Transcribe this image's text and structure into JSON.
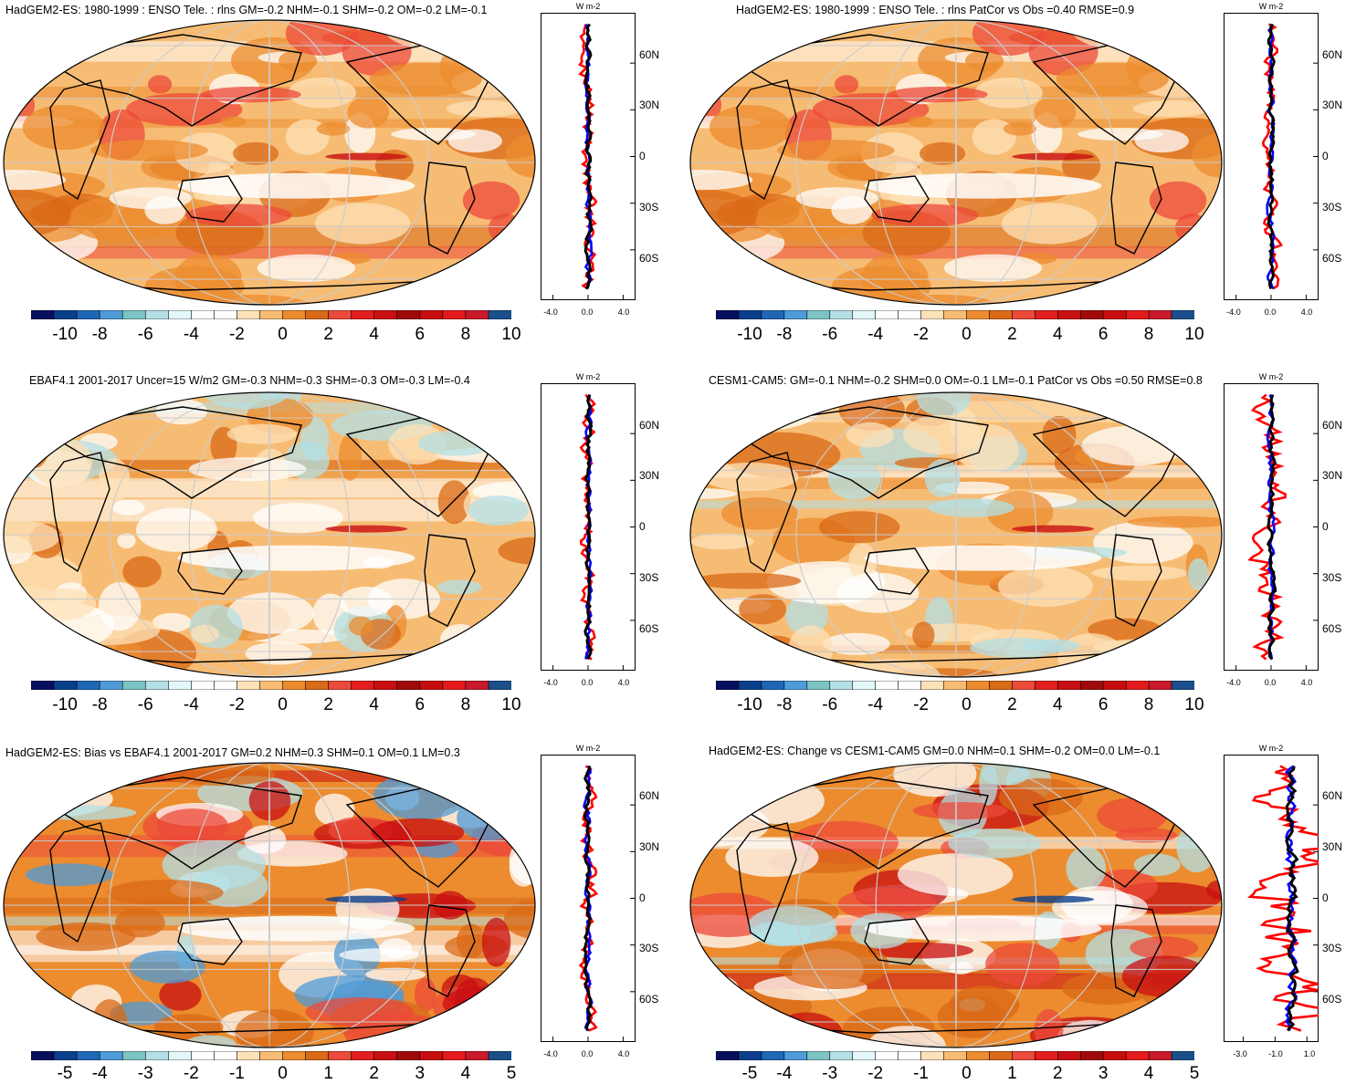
{
  "colorbar_colors": [
    "#08105e",
    "#0a3f8c",
    "#1f67b6",
    "#4e9bd8",
    "#7cc4c3",
    "#b3e0e6",
    "#e3f6f8",
    "#ffffff",
    "#ffffff",
    "#fde1b8",
    "#f7bc74",
    "#ec8c2f",
    "#d96a17",
    "#ec4a3a",
    "#e21e1e",
    "#c80f12",
    "#a00a0a",
    "#c70d0d",
    "#e41a1c",
    "#c81a2a",
    "#1a4f8a"
  ],
  "panels": [
    {
      "title": "HadGEM2-ES: 1980-1999 : ENSO Tele. : rlns GM=-0.2 NHM=-0.1 SHM=-0.2 OM=-0.2 LM=-0.1",
      "colorbar_labels": [
        "-10",
        "-8",
        "-6",
        "-4",
        "-2",
        "0",
        "2",
        "4",
        "6",
        "8",
        "10"
      ],
      "profile": {
        "unit": "W m-2",
        "lat_labels": [
          "60N",
          "30N",
          "0",
          "30S",
          "60S"
        ],
        "xtick_labels": [
          "-4.0",
          "0.0",
          "4.0"
        ]
      }
    },
    {
      "title": "HadGEM2-ES: 1980-1999 : ENSO Tele. : rlns PatCor vs Obs =0.40 RMSE=0.9",
      "colorbar_labels": [
        "-10",
        "-8",
        "-6",
        "-4",
        "-2",
        "0",
        "2",
        "4",
        "6",
        "8",
        "10"
      ],
      "profile": {
        "unit": "W m-2",
        "lat_labels": [
          "60N",
          "30N",
          "0",
          "30S",
          "60S"
        ],
        "xtick_labels": [
          "-4.0",
          "0.0",
          "4.0"
        ]
      }
    },
    {
      "title": "EBAF4.1 2001-2017 Uncer=15 W/m2 GM=-0.3 NHM=-0.3 SHM=-0.3 OM=-0.3 LM=-0.4",
      "colorbar_labels": [
        "-10",
        "-8",
        "-6",
        "-4",
        "-2",
        "0",
        "2",
        "4",
        "6",
        "8",
        "10"
      ],
      "profile": {
        "unit": "W m-2",
        "lat_labels": [
          "60N",
          "30N",
          "0",
          "30S",
          "60S"
        ],
        "xtick_labels": [
          "-4.0",
          "0.0",
          "4.0"
        ]
      }
    },
    {
      "title": "CESM1-CAM5: GM=-0.1 NHM=-0.2 SHM=0.0 OM=-0.1 LM=-0.1 PatCor vs Obs =0.50 RMSE=0.8",
      "colorbar_labels": [
        "-10",
        "-8",
        "-6",
        "-4",
        "-2",
        "0",
        "2",
        "4",
        "6",
        "8",
        "10"
      ],
      "profile": {
        "unit": "W m-2",
        "lat_labels": [
          "60N",
          "30N",
          "0",
          "30S",
          "60S"
        ],
        "xtick_labels": [
          "-4.0",
          "0.0",
          "4.0"
        ]
      }
    },
    {
      "title": "HadGEM2-ES: Bias vs EBAF4.1 2001-2017 GM=0.2 NHM=0.3 SHM=0.1 OM=0.1 LM=0.3",
      "colorbar_labels": [
        "-5",
        "-4",
        "-3",
        "-2",
        "-1",
        "0",
        "1",
        "2",
        "3",
        "4",
        "5"
      ],
      "profile": {
        "unit": "W m-2",
        "lat_labels": [
          "60N",
          "30N",
          "0",
          "30S",
          "60S"
        ],
        "xtick_labels": [
          "-4.0",
          "0.0",
          "4.0"
        ]
      }
    },
    {
      "title": "HadGEM2-ES: Change vs CESM1-CAM5 GM=0.0 NHM=0.1 SHM=-0.2 OM=0.0 LM=-0.1",
      "colorbar_labels": [
        "-5",
        "-4",
        "-3",
        "-2",
        "-1",
        "0",
        "1",
        "2",
        "3",
        "4",
        "5"
      ],
      "profile": {
        "unit": "W m-2",
        "lat_labels": [
          "60N",
          "30N",
          "0",
          "30S",
          "60S"
        ],
        "xtick_labels": [
          "-3.0",
          "-1.0",
          "1.0"
        ]
      }
    }
  ],
  "chart_data": [
    {
      "type": "heatmap",
      "title": "HadGEM2-ES: 1980-1999 : ENSO Tele. : rlns GM=-0.2 NHM=-0.1 SHM=-0.2 OM=-0.2 LM=-0.1",
      "colorbar": {
        "min": -10,
        "max": 10,
        "ticks": [
          -10,
          -8,
          -6,
          -4,
          -2,
          0,
          2,
          4,
          6,
          8,
          10
        ]
      },
      "zonal_profile": {
        "xlim": [
          -5,
          5
        ],
        "xticks": [
          -4.0,
          0.0,
          4.0
        ],
        "ylim": [
          -90,
          90
        ],
        "series_colors": [
          "red",
          "blue",
          "black"
        ]
      }
    },
    {
      "type": "heatmap",
      "title": "HadGEM2-ES: 1980-1999 : ENSO Tele. : rlns PatCor vs Obs =0.40 RMSE=0.9",
      "colorbar": {
        "min": -10,
        "max": 10,
        "ticks": [
          -10,
          -8,
          -6,
          -4,
          -2,
          0,
          2,
          4,
          6,
          8,
          10
        ]
      },
      "zonal_profile": {
        "xlim": [
          -5,
          5
        ],
        "xticks": [
          -4.0,
          0.0,
          4.0
        ],
        "ylim": [
          -90,
          90
        ],
        "series_colors": [
          "red",
          "blue",
          "black"
        ]
      }
    },
    {
      "type": "heatmap",
      "title": "EBAF4.1 2001-2017 Uncer=15 W/m2 GM=-0.3 NHM=-0.3 SHM=-0.3 OM=-0.3 LM=-0.4",
      "colorbar": {
        "min": -10,
        "max": 10,
        "ticks": [
          -10,
          -8,
          -6,
          -4,
          -2,
          0,
          2,
          4,
          6,
          8,
          10
        ]
      },
      "zonal_profile": {
        "xlim": [
          -5,
          5
        ],
        "xticks": [
          -4.0,
          0.0,
          4.0
        ],
        "ylim": [
          -90,
          90
        ],
        "series_colors": [
          "red",
          "blue",
          "black"
        ]
      }
    },
    {
      "type": "heatmap",
      "title": "CESM1-CAM5: GM=-0.1 NHM=-0.2 SHM=0.0 OM=-0.1 LM=-0.1 PatCor vs Obs =0.50 RMSE=0.8",
      "colorbar": {
        "min": -10,
        "max": 10,
        "ticks": [
          -10,
          -8,
          -6,
          -4,
          -2,
          0,
          2,
          4,
          6,
          8,
          10
        ]
      },
      "zonal_profile": {
        "xlim": [
          -5,
          5
        ],
        "xticks": [
          -4.0,
          0.0,
          4.0
        ],
        "ylim": [
          -90,
          90
        ],
        "series_colors": [
          "red",
          "blue",
          "black"
        ]
      }
    },
    {
      "type": "heatmap",
      "title": "HadGEM2-ES: Bias vs EBAF4.1 2001-2017 GM=0.2 NHM=0.3 SHM=0.1 OM=0.1 LM=0.3",
      "colorbar": {
        "min": -5,
        "max": 5,
        "ticks": [
          -5,
          -4,
          -3,
          -2,
          -1,
          0,
          1,
          2,
          3,
          4,
          5
        ]
      },
      "zonal_profile": {
        "xlim": [
          -5,
          5
        ],
        "xticks": [
          -4.0,
          0.0,
          4.0
        ],
        "ylim": [
          -90,
          90
        ],
        "series_colors": [
          "red",
          "blue",
          "black"
        ]
      }
    },
    {
      "type": "heatmap",
      "title": "HadGEM2-ES: Change vs CESM1-CAM5 GM=0.0 NHM=0.1 SHM=-0.2 OM=0.0 LM=-0.1",
      "colorbar": {
        "min": -5,
        "max": 5,
        "ticks": [
          -5,
          -4,
          -3,
          -2,
          -1,
          0,
          1,
          2,
          3,
          4,
          5
        ]
      },
      "zonal_profile": {
        "xlim": [
          -4,
          1.5
        ],
        "xticks": [
          -3.0,
          -1.0,
          1.0
        ],
        "ylim": [
          -90,
          90
        ],
        "series_colors": [
          "red",
          "blue",
          "black"
        ]
      }
    }
  ]
}
